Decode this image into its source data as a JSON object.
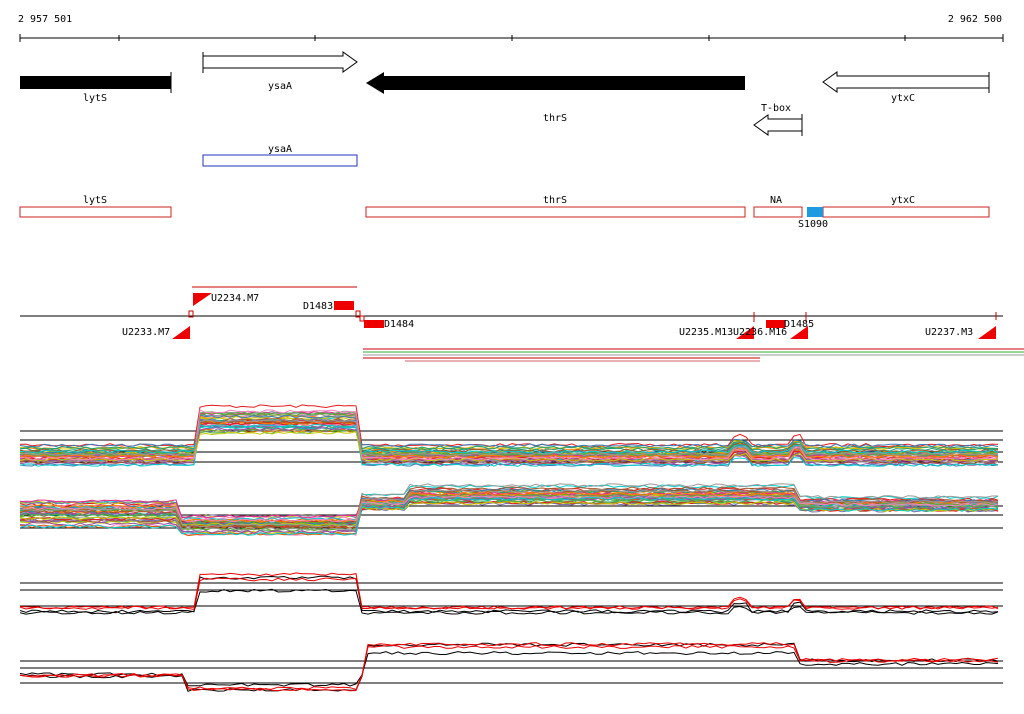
{
  "ruler": {
    "start": "2 957 501",
    "end": "2 962 500"
  },
  "genes": [
    {
      "label": "lytS"
    },
    {
      "label": "ysaA"
    },
    {
      "label": "thrS"
    },
    {
      "label": "ytxC"
    },
    {
      "label": "T-box"
    }
  ],
  "cds": [
    {
      "label": "ysaA"
    }
  ],
  "annotations": [
    {
      "label": "lytS"
    },
    {
      "label": "thrS"
    },
    {
      "label": "NA"
    },
    {
      "label": "ytxC"
    }
  ],
  "site": {
    "label": "S1090"
  },
  "segments": [
    {
      "label": "U2234.M7"
    },
    {
      "label": "D1483"
    },
    {
      "label": "D1484"
    },
    {
      "label": "U2233.M7"
    },
    {
      "label": "U2235.M13"
    },
    {
      "label": "U2236.M16"
    },
    {
      "label": "D1485"
    },
    {
      "label": "U2237.M3"
    }
  ]
}
